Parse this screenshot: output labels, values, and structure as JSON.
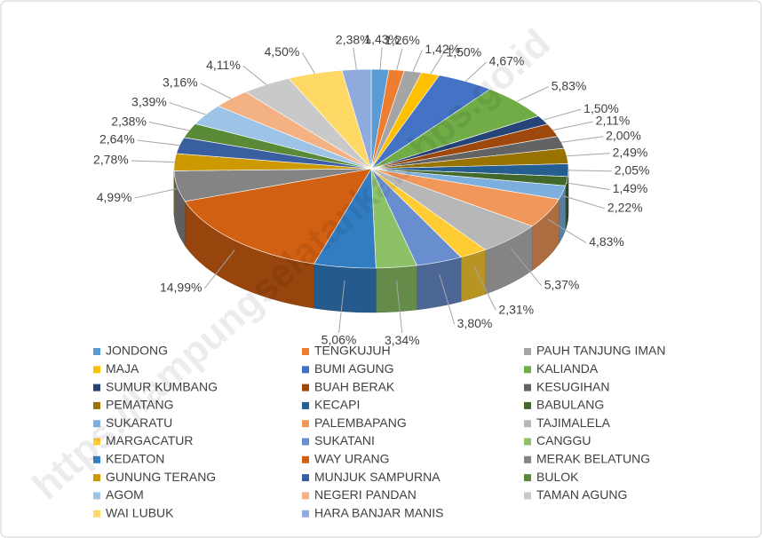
{
  "chart_data": {
    "type": "pie3d",
    "watermark": "https://lampungselatankab.bps.go.id",
    "categories": [
      "JONDONG",
      "TENGKUJUH",
      "PAUH TANJUNG IMAN",
      "MAJA",
      "BUMI AGUNG",
      "KALIANDA",
      "SUMUR KUMBANG",
      "BUAH BERAK",
      "KESUGIHAN",
      "PEMATANG",
      "KECAPI",
      "BABULANG",
      "SUKARATU",
      "PALEMBAPANG",
      "TAJIMALELA",
      "MARGACATUR",
      "SUKATANI",
      "CANGGU",
      "KEDATON",
      "WAY URANG",
      "MERAK BELATUNG",
      "GUNUNG TERANG",
      "MUNJUK SAMPURNA",
      "BULOK",
      "AGOM",
      "NEGERI PANDAN",
      "TAMAN AGUNG",
      "WAI LUBUK",
      "HARA BANJAR MANIS"
    ],
    "values": [
      1.43,
      1.26,
      1.42,
      1.5,
      4.67,
      5.83,
      1.5,
      2.11,
      2.0,
      2.49,
      2.05,
      1.49,
      2.22,
      4.83,
      5.37,
      2.31,
      3.8,
      3.34,
      5.06,
      14.99,
      4.99,
      2.78,
      2.64,
      2.38,
      3.39,
      3.16,
      4.11,
      4.5,
      2.38
    ],
    "value_labels": [
      "1,43%",
      "1,26%",
      "1,42%",
      "1,50%",
      "4,67%",
      "5,83%",
      "1,50%",
      "2,11%",
      "2,00%",
      "2,49%",
      "2,05%",
      "1,49%",
      "2,22%",
      "4,83%",
      "5,37%",
      "2,31%",
      "3,80%",
      "3,34%",
      "5,06%",
      "14,99%",
      "4,99%",
      "2,78%",
      "2,64%",
      "2,38%",
      "3,39%",
      "3,16%",
      "4,11%",
      "4,50%",
      "2,38%"
    ],
    "colors": [
      "#5b9bd5",
      "#ed7d31",
      "#a5a5a5",
      "#ffc000",
      "#4472c4",
      "#70ad47",
      "#264478",
      "#9e480e",
      "#636363",
      "#997300",
      "#255e91",
      "#43682b",
      "#7cafdd",
      "#f1975a",
      "#b7b7b7",
      "#ffcd33",
      "#698ed0",
      "#8cc168",
      "#327dc2",
      "#d26012",
      "#848484",
      "#cc9a00",
      "#3a5fa0",
      "#5a8a38",
      "#9dc3e6",
      "#f4b183",
      "#c9c9c9",
      "#ffd966",
      "#8faadc"
    ],
    "legend": "bottom"
  }
}
